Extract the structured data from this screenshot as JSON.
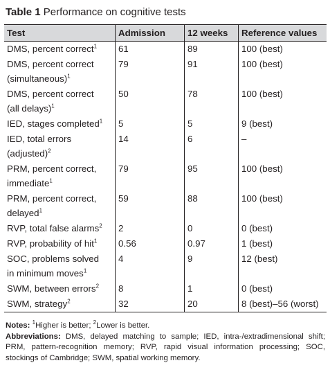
{
  "title": {
    "label": "Table 1",
    "text": "Performance on cognitive tests"
  },
  "headers": [
    "Test",
    "Admission",
    "12 weeks",
    "Reference values"
  ],
  "rows": [
    {
      "test": [
        "DMS, percent correct"
      ],
      "sup": "1",
      "admission": "61",
      "weeks12": "89",
      "reference": "100 (best)"
    },
    {
      "test": [
        "DMS, percent correct",
        "(simultaneous)"
      ],
      "sup": "1",
      "admission": "79",
      "weeks12": "91",
      "reference": "100 (best)"
    },
    {
      "test": [
        "DMS, percent correct",
        "(all delays)"
      ],
      "sup": "1",
      "admission": "50",
      "weeks12": "78",
      "reference": "100 (best)"
    },
    {
      "test": [
        "IED, stages completed"
      ],
      "sup": "1",
      "admission": "5",
      "weeks12": "5",
      "reference": "9 (best)"
    },
    {
      "test": [
        "IED, total errors",
        "(adjusted)"
      ],
      "sup": "2",
      "admission": "14",
      "weeks12": "6",
      "reference": "–"
    },
    {
      "test": [
        "PRM, percent correct,",
        "immediate"
      ],
      "sup": "1",
      "admission": "79",
      "weeks12": "95",
      "reference": "100 (best)"
    },
    {
      "test": [
        "PRM, percent correct,",
        "delayed"
      ],
      "sup": "1",
      "admission": "59",
      "weeks12": "88",
      "reference": "100 (best)"
    },
    {
      "test": [
        "RVP, total false alarms"
      ],
      "sup": "2",
      "admission": "2",
      "weeks12": "0",
      "reference": "0 (best)"
    },
    {
      "test": [
        "RVP, probability of hit"
      ],
      "sup": "1",
      "admission": "0.56",
      "weeks12": "0.97",
      "reference": "1 (best)"
    },
    {
      "test": [
        "SOC, problems solved",
        "in minimum moves"
      ],
      "sup": "1",
      "admission": "4",
      "weeks12": "9",
      "reference": "12 (best)"
    },
    {
      "test": [
        "SWM, between errors"
      ],
      "sup": "2",
      "admission": "8",
      "weeks12": "1",
      "reference": "0 (best)"
    },
    {
      "test": [
        "SWM, strategy"
      ],
      "sup": "2",
      "admission": "32",
      "weeks12": "20",
      "reference": "8 (best)–56 (worst)"
    }
  ],
  "notes": {
    "label": "Notes:",
    "sup1": "1",
    "text1": "Higher is better; ",
    "sup2": "2",
    "text2": "Lower is better."
  },
  "abbreviations": {
    "label": "Abbreviations:",
    "text": "DMS, delayed matching to sample; IED, intra-/extradimensional shift; PRM, pattern-recognition memory; RVP, rapid visual information processing; SOC, stockings of Cambridge; SWM, spatial working memory."
  }
}
